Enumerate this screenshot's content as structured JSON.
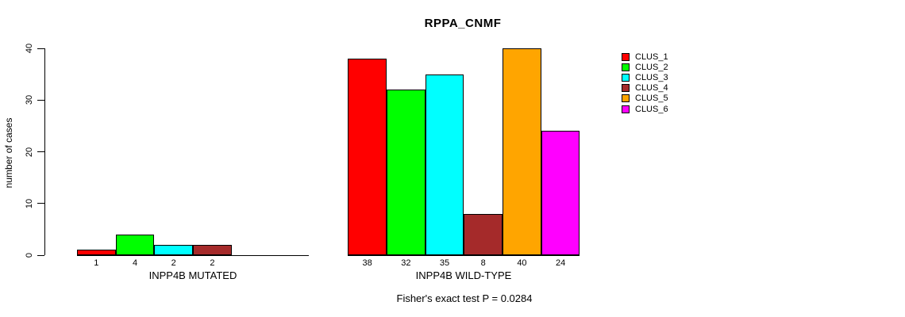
{
  "title": "RPPA_CNMF",
  "ylabel": "number of cases",
  "footer": "Fisher's exact test P = 0.0284",
  "chart_data": {
    "type": "bar",
    "title": "RPPA_CNMF",
    "ylabel": "number of cases",
    "xlabel": "",
    "ylim": [
      0,
      40
    ],
    "yticks": [
      "0",
      "10",
      "20",
      "30",
      "40"
    ],
    "grid": false,
    "legend_position": "right",
    "series_names": [
      "CLUS_1",
      "CLUS_2",
      "CLUS_3",
      "CLUS_4",
      "CLUS_5",
      "CLUS_6"
    ],
    "series_colors": [
      "#FF0000",
      "#00FF00",
      "#00FFFF",
      "#A52A2A",
      "#FFA500",
      "#FF00FF"
    ],
    "groups": [
      {
        "label": "INPP4B MUTATED",
        "values": [
          1,
          4,
          2,
          2,
          0,
          0
        ],
        "bar_labels": [
          "1",
          "4",
          "2",
          "2",
          "",
          ""
        ]
      },
      {
        "label": "INPP4B WILD-TYPE",
        "values": [
          38,
          32,
          35,
          8,
          40,
          24
        ],
        "bar_labels": [
          "38",
          "32",
          "35",
          "8",
          "40",
          "24"
        ]
      }
    ],
    "annotation": "Fisher's exact test P = 0.0284"
  }
}
